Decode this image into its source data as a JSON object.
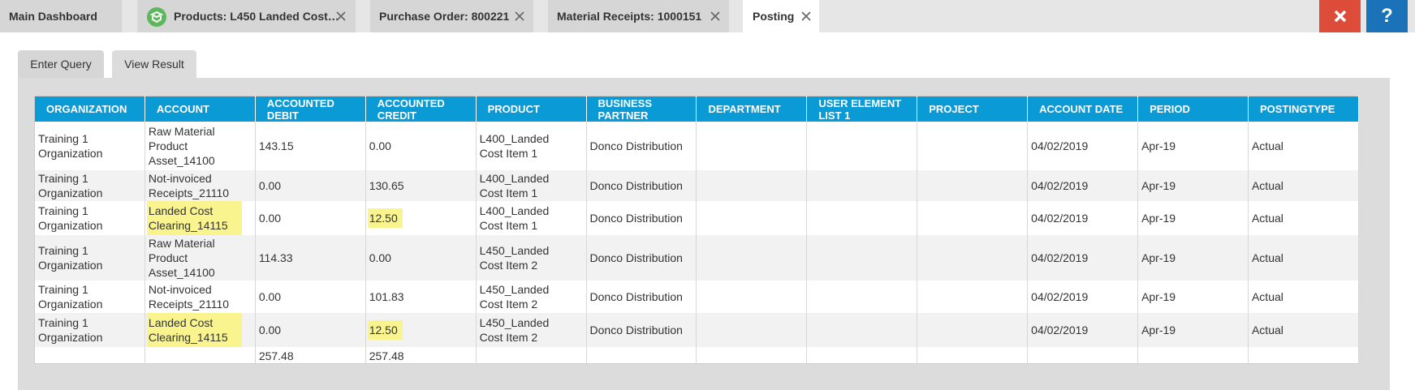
{
  "tabs": [
    "Main Dashboard",
    "Products: L450 Landed Cost…",
    "Purchase Order: 800221",
    "Material Receipts: 1000151",
    "Posting"
  ],
  "help_button": "?",
  "query_tabs": [
    "Enter Query",
    "View Result"
  ],
  "table": {
    "columns": [
      "ORGANIZATION",
      "ACCOUNT",
      "ACCOUNTED DEBIT",
      "ACCOUNTED CREDIT",
      "PRODUCT",
      "BUSINESS PARTNER",
      "DEPARTMENT",
      "USER ELEMENT LIST 1",
      "PROJECT",
      "ACCOUNT DATE",
      "PERIOD",
      "POSTINGTYPE"
    ],
    "rows": [
      [
        "Training 1 Organization",
        "Raw Material Product Asset_14100",
        "143.15",
        "0.00",
        "L400_Landed Cost Item 1",
        "Donco Distribution",
        null,
        null,
        null,
        "04/02/2019",
        "Apr-19",
        "Actual"
      ],
      [
        "Training 1 Organization",
        "Not-invoiced Receipts_21110",
        "0.00",
        "130.65",
        "L400_Landed Cost Item 1",
        "Donco Distribution",
        null,
        null,
        null,
        "04/02/2019",
        "Apr-19",
        "Actual"
      ],
      [
        "Training 1 Organization",
        "Landed Cost Clearing_14115",
        "0.00",
        "12.50",
        "L400_Landed Cost Item 1",
        "Donco Distribution",
        null,
        null,
        null,
        "04/02/2019",
        "Apr-19",
        "Actual"
      ],
      [
        "Training 1 Organization",
        "Raw Material Product Asset_14100",
        "114.33",
        "0.00",
        "L450_Landed Cost Item 2",
        "Donco Distribution",
        null,
        null,
        null,
        "04/02/2019",
        "Apr-19",
        "Actual"
      ],
      [
        "Training 1 Organization",
        "Not-invoiced Receipts_21110",
        "0.00",
        "101.83",
        "L450_Landed Cost Item 2",
        "Donco Distribution",
        null,
        null,
        null,
        "04/02/2019",
        "Apr-19",
        "Actual"
      ],
      [
        "Training 1 Organization",
        "Landed Cost Clearing_14115",
        "0.00",
        "12.50",
        "L450_Landed Cost Item 2",
        "Donco Distribution",
        null,
        null,
        null,
        "04/02/2019",
        "Apr-19",
        "Actual"
      ]
    ],
    "totals": [
      null,
      null,
      "257.48",
      "257.48",
      null,
      null,
      null,
      null,
      null,
      null,
      null,
      null
    ]
  }
}
